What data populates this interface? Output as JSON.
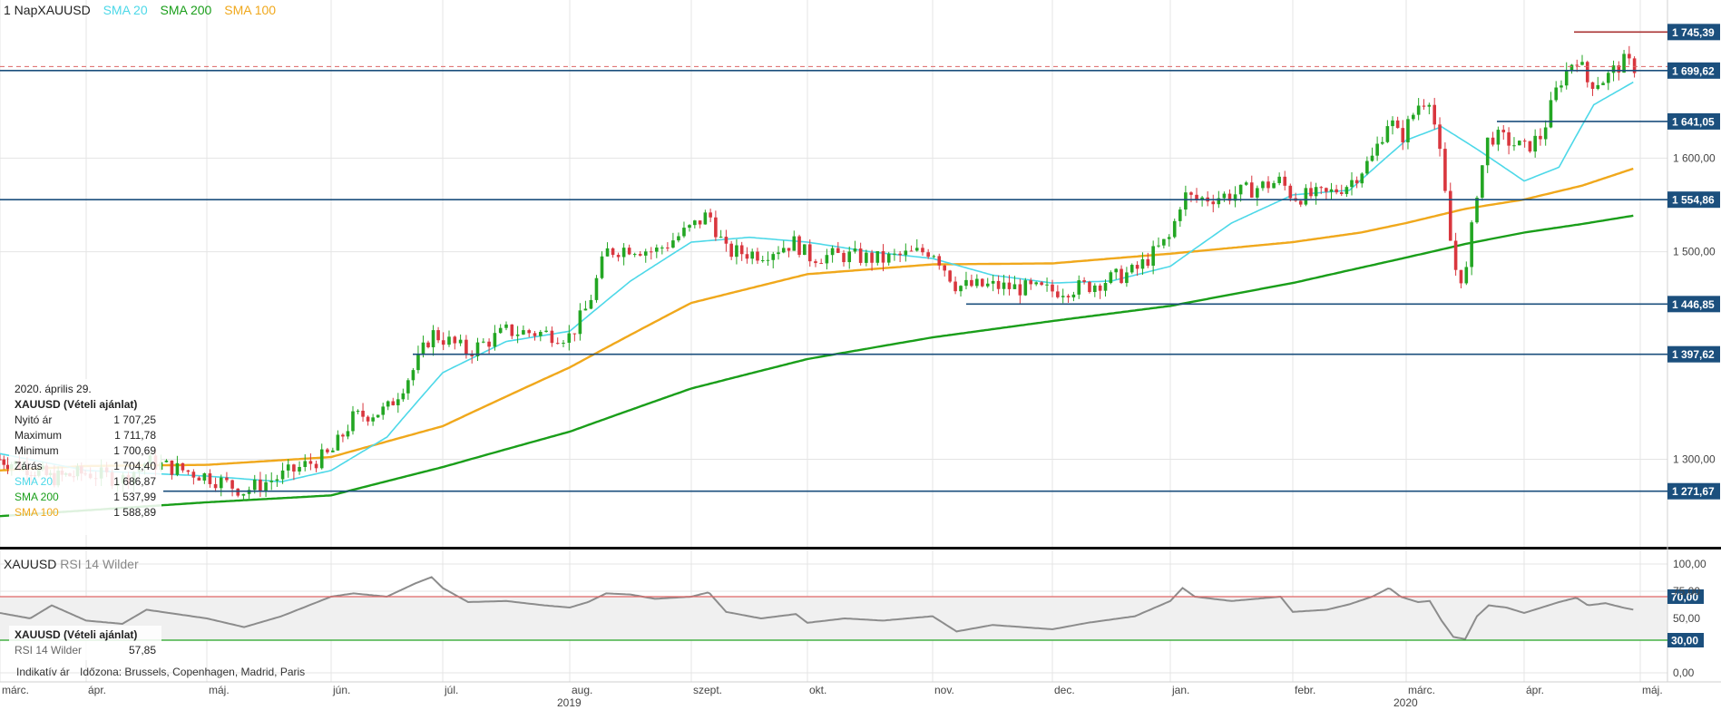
{
  "header": {
    "title": "1 NapXAUUSD",
    "legend": [
      {
        "label": "SMA 20",
        "color": "#4dd8e8"
      },
      {
        "label": "SMA 200",
        "color": "#1a9e1a"
      },
      {
        "label": "SMA 100",
        "color": "#f0a81c"
      }
    ]
  },
  "colors": {
    "up": "#23a623",
    "down": "#d9363e",
    "level": "#1b4f7d",
    "sma20": "#4dd8e8",
    "sma200": "#1a9e1a",
    "sma100": "#f0a81c",
    "rsi": "#8c8c8c"
  },
  "info_box": {
    "date": "2020. április 29.",
    "instrument": "XAUUSD (Vételi ajánlat)",
    "rows": [
      {
        "label": "Nyitó ár",
        "value": "1 707,25"
      },
      {
        "label": "Maximum",
        "value": "1 711,78"
      },
      {
        "label": "Minimum",
        "value": "1 700,69"
      },
      {
        "label": "Zárás",
        "value": "1 704,40"
      },
      {
        "label": "SMA 20",
        "value": "1 686,87"
      },
      {
        "label": "SMA 200",
        "value": "1 537,99"
      },
      {
        "label": "SMA 100",
        "value": "1 588,89"
      }
    ]
  },
  "rsi_panel": {
    "title": "XAUUSD",
    "indicator": "RSI 14 Wilder",
    "instrument": "XAUUSD (Vételi ajánlat)",
    "value_label": "RSI 14 Wilder",
    "value": "57,85"
  },
  "footer": {
    "indicative": "Indikatív ár",
    "timezone": "Időzona: Brussels, Copenhagen, Madrid, Paris"
  },
  "chart_data": [
    {
      "type": "candlestick",
      "instrument": "XAUUSD",
      "ylim": [
        1230,
        1760
      ],
      "y_scale": "log",
      "y_ticks": [
        {
          "value": 1300,
          "label": "1 300,00"
        },
        {
          "value": 1500,
          "label": "1 500,00"
        },
        {
          "value": 1600,
          "label": "1 600,00"
        }
      ],
      "levels": [
        {
          "value": 1745.39,
          "label": "1 745,39"
        },
        {
          "value": 1699.62,
          "label": "1 699,62"
        },
        {
          "value": 1641.05,
          "label": "1 641,05"
        },
        {
          "value": 1554.86,
          "label": "1 554,86"
        },
        {
          "value": 1446.85,
          "label": "1 446,85"
        },
        {
          "value": 1397.62,
          "label": "1 397,62"
        },
        {
          "value": 1271.67,
          "label": "1 271,67"
        }
      ],
      "current_price": 1704.4,
      "x_labels": [
        "márc.",
        "ápr.",
        "máj.",
        "jún.",
        "júl.",
        "aug.",
        "szept.",
        "okt.",
        "nov.",
        "dec.",
        "jan.",
        "febr.",
        "márc.",
        "ápr.",
        "máj."
      ],
      "year_labels": [
        {
          "label": "2019",
          "index": 5
        },
        {
          "label": "2020",
          "index": 12
        }
      ],
      "close_keypoints": [
        [
          0,
          1300
        ],
        [
          0.35,
          1292
        ],
        [
          0.6,
          1283
        ],
        [
          1.0,
          1288
        ],
        [
          1.3,
          1282
        ],
        [
          1.5,
          1298
        ],
        [
          2.0,
          1285
        ],
        [
          2.3,
          1272
        ],
        [
          2.6,
          1285
        ],
        [
          3.0,
          1305
        ],
        [
          3.2,
          1338
        ],
        [
          3.5,
          1345
        ],
        [
          3.75,
          1385
        ],
        [
          3.9,
          1418
        ],
        [
          4.0,
          1413
        ],
        [
          4.2,
          1400
        ],
        [
          4.5,
          1420
        ],
        [
          4.8,
          1418
        ],
        [
          5.0,
          1415
        ],
        [
          5.15,
          1445
        ],
        [
          5.3,
          1500
        ],
        [
          5.5,
          1505
        ],
        [
          5.7,
          1500
        ],
        [
          6.0,
          1525
        ],
        [
          6.15,
          1540
        ],
        [
          6.3,
          1500
        ],
        [
          6.6,
          1498
        ],
        [
          6.9,
          1510
        ],
        [
          7.0,
          1495
        ],
        [
          7.3,
          1496
        ],
        [
          7.6,
          1492
        ],
        [
          8.0,
          1502
        ],
        [
          8.2,
          1465
        ],
        [
          8.5,
          1465
        ],
        [
          9.0,
          1460
        ],
        [
          9.3,
          1465
        ],
        [
          9.7,
          1480
        ],
        [
          10.0,
          1515
        ],
        [
          10.1,
          1560
        ],
        [
          10.2,
          1555
        ],
        [
          10.5,
          1560
        ],
        [
          10.9,
          1575
        ],
        [
          11.0,
          1558
        ],
        [
          11.3,
          1560
        ],
        [
          11.5,
          1573
        ],
        [
          11.7,
          1600
        ],
        [
          11.85,
          1645
        ],
        [
          11.95,
          1620
        ],
        [
          12.1,
          1660
        ],
        [
          12.2,
          1670
        ],
        [
          12.3,
          1590
        ],
        [
          12.4,
          1485
        ],
        [
          12.5,
          1470
        ],
        [
          12.6,
          1565
        ],
        [
          12.7,
          1625
        ],
        [
          12.85,
          1620
        ],
        [
          13.0,
          1610
        ],
        [
          13.15,
          1625
        ],
        [
          13.3,
          1685
        ],
        [
          13.45,
          1718
        ],
        [
          13.55,
          1685
        ],
        [
          13.7,
          1690
        ],
        [
          13.85,
          1710
        ],
        [
          13.95,
          1704
        ]
      ],
      "sma20_keypoints": [
        [
          0,
          1305
        ],
        [
          1.0,
          1290
        ],
        [
          2.0,
          1285
        ],
        [
          2.6,
          1280
        ],
        [
          3.0,
          1290
        ],
        [
          3.5,
          1320
        ],
        [
          4.0,
          1380
        ],
        [
          4.5,
          1410
        ],
        [
          5.0,
          1420
        ],
        [
          5.5,
          1470
        ],
        [
          6.0,
          1510
        ],
        [
          6.5,
          1515
        ],
        [
          7.0,
          1510
        ],
        [
          7.5,
          1500
        ],
        [
          8.0,
          1493
        ],
        [
          8.5,
          1476
        ],
        [
          9.0,
          1468
        ],
        [
          9.5,
          1470
        ],
        [
          10.0,
          1485
        ],
        [
          10.5,
          1530
        ],
        [
          11.0,
          1560
        ],
        [
          11.5,
          1565
        ],
        [
          12.0,
          1620
        ],
        [
          12.3,
          1635
        ],
        [
          12.6,
          1610
        ],
        [
          13.0,
          1575
        ],
        [
          13.3,
          1590
        ],
        [
          13.6,
          1660
        ],
        [
          13.95,
          1686.87
        ]
      ],
      "sma100_keypoints": [
        [
          0,
          1290
        ],
        [
          1.0,
          1294
        ],
        [
          2.0,
          1295
        ],
        [
          3.0,
          1302
        ],
        [
          4.0,
          1330
        ],
        [
          5.0,
          1385
        ],
        [
          6.0,
          1448
        ],
        [
          7.0,
          1477
        ],
        [
          8.0,
          1487
        ],
        [
          9.0,
          1488
        ],
        [
          10.0,
          1498
        ],
        [
          11.0,
          1510
        ],
        [
          11.6,
          1520
        ],
        [
          12.0,
          1530
        ],
        [
          12.5,
          1545
        ],
        [
          13.0,
          1555
        ],
        [
          13.5,
          1570
        ],
        [
          13.95,
          1588.89
        ]
      ],
      "sma200_keypoints": [
        [
          0,
          1250
        ],
        [
          1.0,
          1255
        ],
        [
          2.0,
          1262
        ],
        [
          3.0,
          1268
        ],
        [
          4.0,
          1293
        ],
        [
          5.0,
          1325
        ],
        [
          6.0,
          1365
        ],
        [
          7.0,
          1393
        ],
        [
          8.0,
          1414
        ],
        [
          9.0,
          1430
        ],
        [
          10.0,
          1445
        ],
        [
          11.0,
          1468
        ],
        [
          12.0,
          1494
        ],
        [
          12.5,
          1508
        ],
        [
          13.0,
          1520
        ],
        [
          13.5,
          1529
        ],
        [
          13.95,
          1537.99
        ]
      ]
    },
    {
      "type": "line",
      "series_name": "RSI 14 Wilder",
      "ylim": [
        0,
        100
      ],
      "y_ticks": [
        {
          "value": 0,
          "label": "0,00"
        },
        {
          "value": 50,
          "label": "50,00"
        },
        {
          "value": 75,
          "label": "75,00"
        },
        {
          "value": 100,
          "label": "100,00"
        }
      ],
      "levels": [
        {
          "value": 70,
          "label": "70,00",
          "color": "#e06666"
        },
        {
          "value": 30,
          "label": "30,00",
          "color": "#22a222"
        }
      ],
      "rsi_keypoints": [
        [
          0,
          55
        ],
        [
          0.35,
          50
        ],
        [
          0.6,
          62
        ],
        [
          1.0,
          48
        ],
        [
          1.3,
          45
        ],
        [
          1.5,
          58
        ],
        [
          2.0,
          50
        ],
        [
          2.3,
          42
        ],
        [
          2.6,
          52
        ],
        [
          3.0,
          70
        ],
        [
          3.2,
          73
        ],
        [
          3.5,
          70
        ],
        [
          3.75,
          82
        ],
        [
          3.9,
          88
        ],
        [
          4.0,
          78
        ],
        [
          4.2,
          65
        ],
        [
          4.5,
          66
        ],
        [
          4.8,
          62
        ],
        [
          5.0,
          60
        ],
        [
          5.15,
          65
        ],
        [
          5.3,
          73
        ],
        [
          5.5,
          72
        ],
        [
          5.7,
          68
        ],
        [
          6.0,
          70
        ],
        [
          6.15,
          74
        ],
        [
          6.3,
          56
        ],
        [
          6.6,
          50
        ],
        [
          6.9,
          54
        ],
        [
          7.0,
          46
        ],
        [
          7.3,
          50
        ],
        [
          7.6,
          48
        ],
        [
          8.0,
          52
        ],
        [
          8.2,
          38
        ],
        [
          8.5,
          44
        ],
        [
          9.0,
          40
        ],
        [
          9.3,
          46
        ],
        [
          9.7,
          52
        ],
        [
          10.0,
          66
        ],
        [
          10.1,
          78
        ],
        [
          10.2,
          70
        ],
        [
          10.5,
          66
        ],
        [
          10.9,
          70
        ],
        [
          11.0,
          56
        ],
        [
          11.3,
          58
        ],
        [
          11.5,
          63
        ],
        [
          11.7,
          70
        ],
        [
          11.85,
          78
        ],
        [
          11.95,
          70
        ],
        [
          12.1,
          65
        ],
        [
          12.2,
          66
        ],
        [
          12.3,
          48
        ],
        [
          12.4,
          33
        ],
        [
          12.5,
          31
        ],
        [
          12.6,
          52
        ],
        [
          12.7,
          62
        ],
        [
          12.85,
          60
        ],
        [
          13.0,
          55
        ],
        [
          13.15,
          60
        ],
        [
          13.3,
          65
        ],
        [
          13.45,
          69
        ],
        [
          13.55,
          62
        ],
        [
          13.7,
          64
        ],
        [
          13.85,
          60
        ],
        [
          13.95,
          57.85
        ]
      ]
    }
  ]
}
